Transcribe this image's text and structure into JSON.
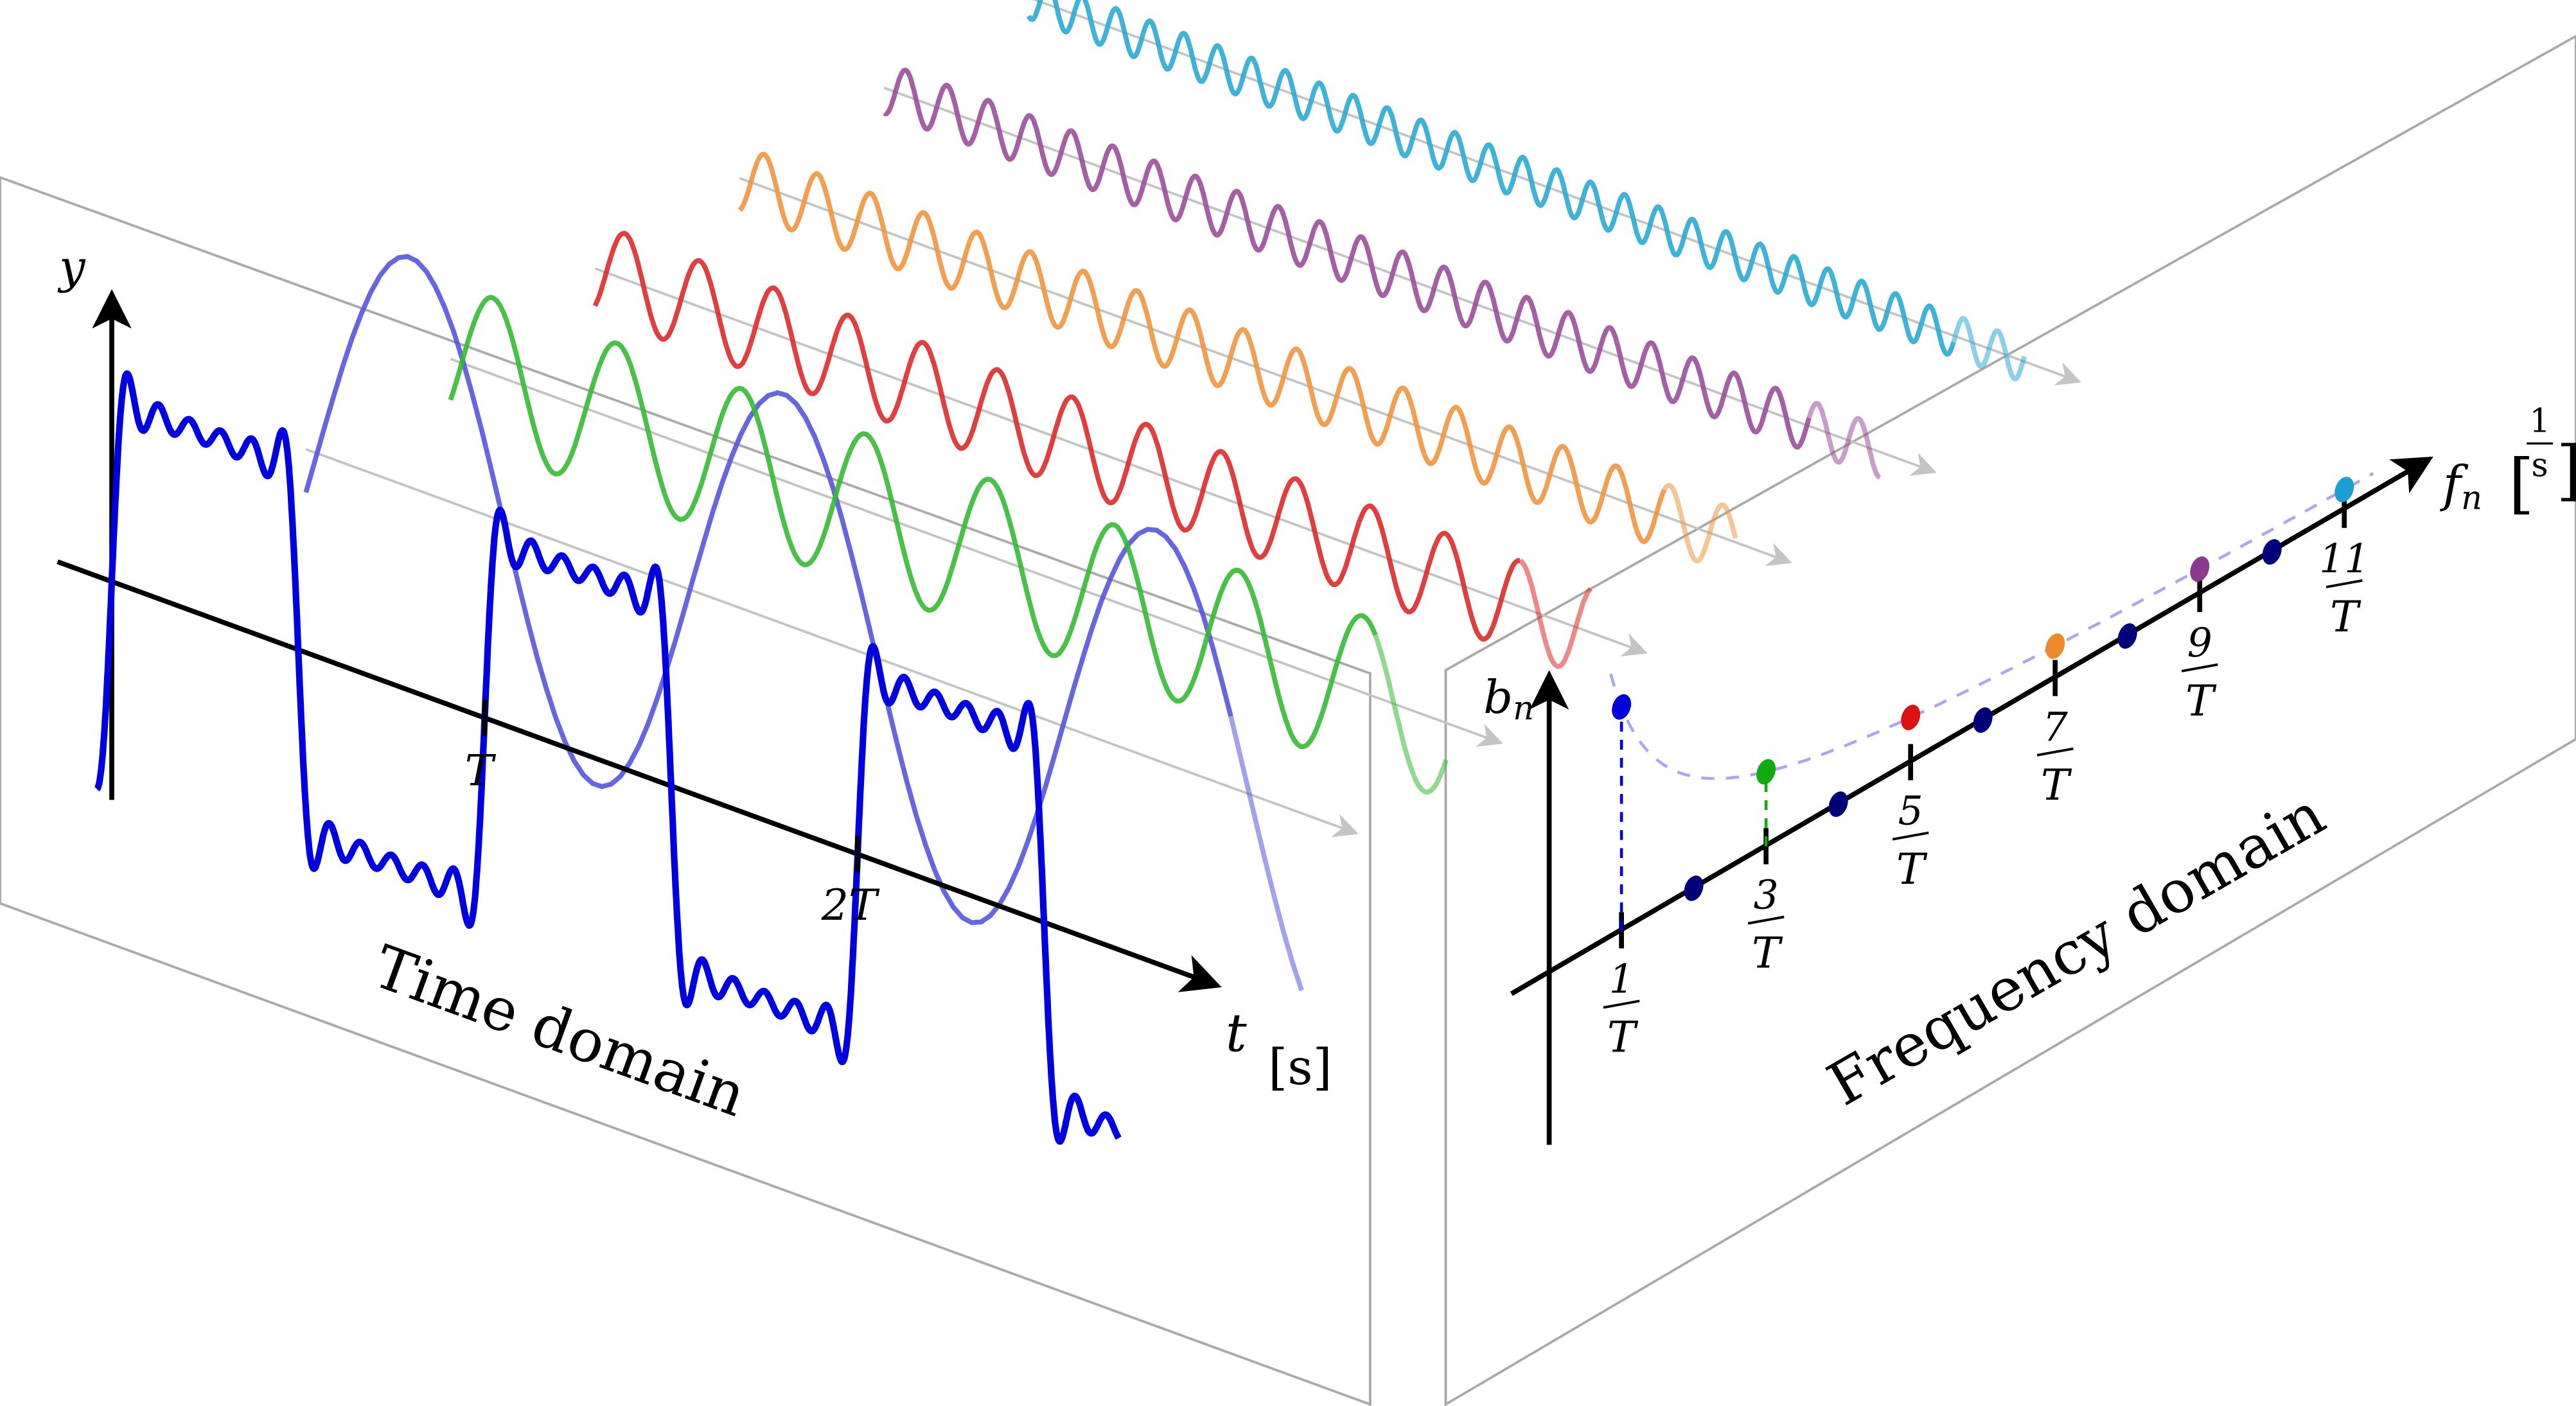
{
  "labels": {
    "time_axis": "t",
    "time_unit": "[s]",
    "y_axis": "y",
    "period_tick": "T",
    "double_period_tick": "2T",
    "time_domain": "Time domain",
    "frequency_domain": "Frequency domain",
    "amplitude_axis": "b",
    "amplitude_sub": "n",
    "frequency_axis": "f",
    "frequency_sub": "n",
    "frequency_unit_num": "1",
    "frequency_unit_den": "s"
  },
  "fraction_denominator": "T",
  "harmonics": [
    {
      "n": 1,
      "numerator": "1",
      "color": "#0000dd",
      "wave_color": "#5555dd"
    },
    {
      "n": 3,
      "numerator": "3",
      "color": "#11aa11",
      "wave_color": "#33bb33"
    },
    {
      "n": 5,
      "numerator": "5",
      "color": "#dd1111",
      "wave_color": "#dd2a2a"
    },
    {
      "n": 7,
      "numerator": "7",
      "color": "#ee8a2a",
      "wave_color": "#f0963e"
    },
    {
      "n": 9,
      "numerator": "9",
      "color": "#8a3a8a",
      "wave_color": "#9b4f9b"
    },
    {
      "n": 11,
      "numerator": "11",
      "color": "#1a9fd0",
      "wave_color": "#2aaad3"
    }
  ],
  "even_harmonics": [
    2,
    4,
    6,
    8,
    10
  ],
  "colors": {
    "square_wave": "#0000e0",
    "even_dot": "#00007a",
    "panel": "#aaaaaa",
    "guide_arrow": "#c4c4c4",
    "envelope": "#a8a8ee"
  }
}
